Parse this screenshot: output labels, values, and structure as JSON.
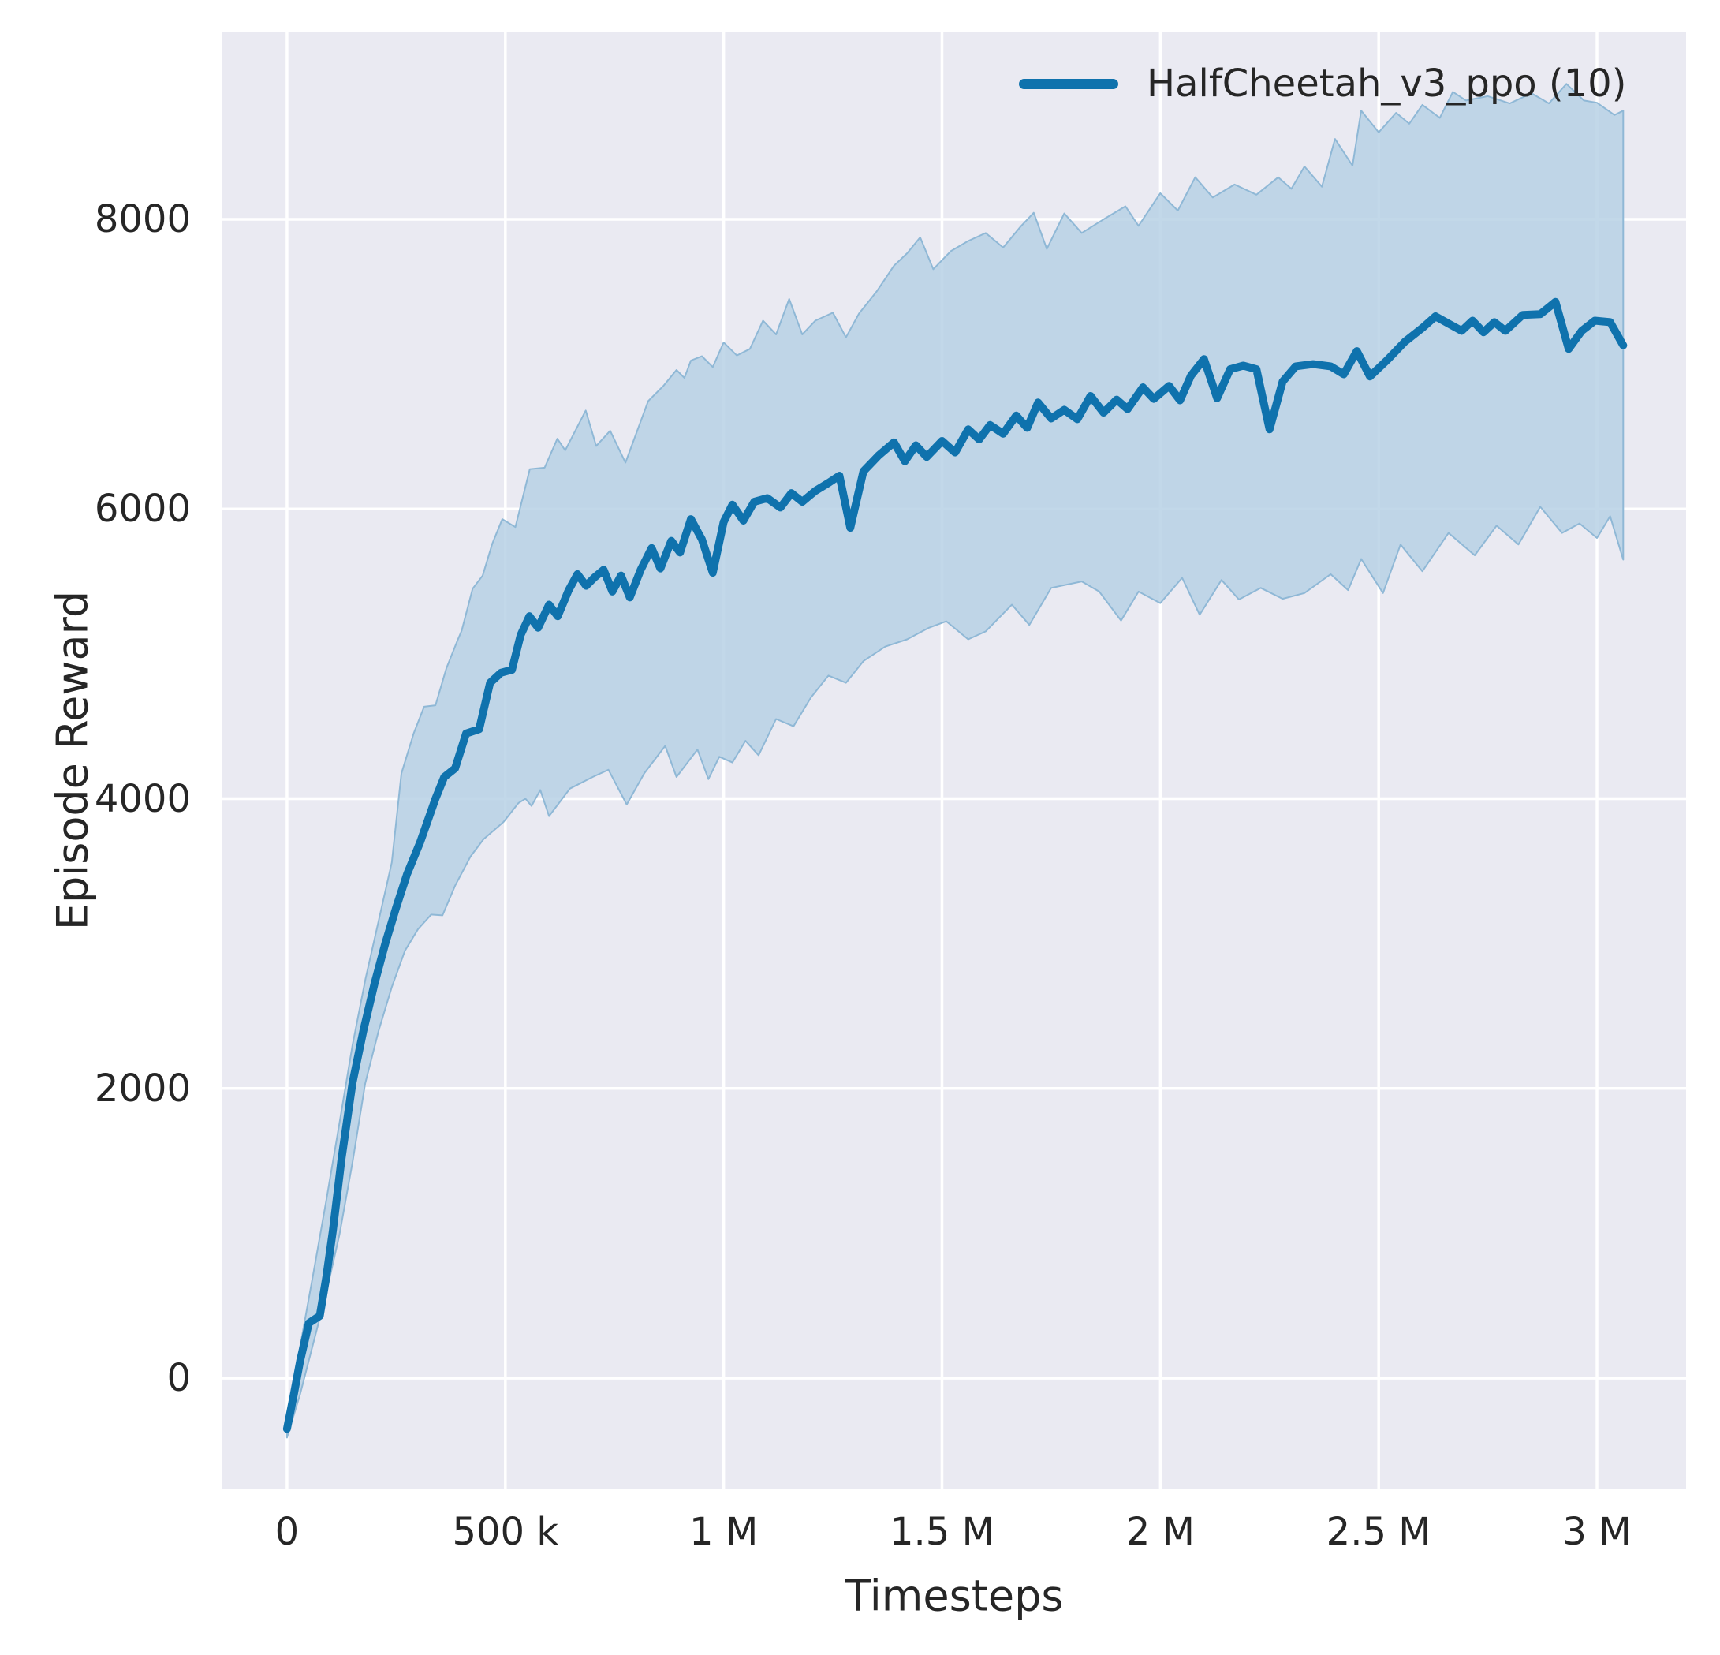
{
  "figure": {
    "panel_bg": "#eaeaf2",
    "grid_color": "#ffffff",
    "text_color": "#262626",
    "line_color": "#0f72ad",
    "band_fill": "#b7d1e5",
    "band_edge": "#8fb8d6"
  },
  "axes": {
    "xlabel": "Timesteps",
    "ylabel": "Episode Reward",
    "x_ticks": [
      {
        "t": 0,
        "label": "0"
      },
      {
        "t": 0.5,
        "label": "500 k"
      },
      {
        "t": 1.0,
        "label": "1 M"
      },
      {
        "t": 1.5,
        "label": "1.5 M"
      },
      {
        "t": 2.0,
        "label": "2 M"
      },
      {
        "t": 2.5,
        "label": "2.5 M"
      },
      {
        "t": 3.0,
        "label": "3 M"
      }
    ],
    "y_ticks": [
      {
        "v": 0,
        "label": "0"
      },
      {
        "v": 2000,
        "label": "2000"
      },
      {
        "v": 4000,
        "label": "4000"
      },
      {
        "v": 6000,
        "label": "6000"
      },
      {
        "v": 8000,
        "label": "8000"
      }
    ]
  },
  "legend": {
    "label": "HalfCheetah_v3_ppo (10)"
  },
  "chart_data": {
    "type": "line",
    "title": "",
    "xlabel": "Timesteps",
    "ylabel": "Episode Reward",
    "x_unit": "millions of timesteps",
    "xlim_M": [
      -0.148,
      3.204
    ],
    "ylim": [
      -762,
      9296
    ],
    "grid": true,
    "legend_position": "upper right",
    "series": [
      {
        "name": "HalfCheetah_v3_ppo (10)",
        "color": "#0f72ad",
        "band_alpha_color": "#b7d1e5",
        "mean": [
          [
            0,
            -350
          ],
          [
            0.015,
            -120
          ],
          [
            0.03,
            120
          ],
          [
            0.05,
            380
          ],
          [
            0.075,
            430
          ],
          [
            0.09,
            700
          ],
          [
            0.105,
            1020
          ],
          [
            0.125,
            1520
          ],
          [
            0.15,
            2040
          ],
          [
            0.175,
            2400
          ],
          [
            0.2,
            2720
          ],
          [
            0.225,
            3000
          ],
          [
            0.25,
            3250
          ],
          [
            0.275,
            3480
          ],
          [
            0.305,
            3700
          ],
          [
            0.34,
            4000
          ],
          [
            0.36,
            4150
          ],
          [
            0.385,
            4210
          ],
          [
            0.41,
            4450
          ],
          [
            0.44,
            4480
          ],
          [
            0.465,
            4800
          ],
          [
            0.49,
            4870
          ],
          [
            0.515,
            4890
          ],
          [
            0.535,
            5130
          ],
          [
            0.555,
            5260
          ],
          [
            0.575,
            5180
          ],
          [
            0.6,
            5340
          ],
          [
            0.62,
            5260
          ],
          [
            0.645,
            5440
          ],
          [
            0.665,
            5550
          ],
          [
            0.685,
            5470
          ],
          [
            0.705,
            5530
          ],
          [
            0.725,
            5580
          ],
          [
            0.745,
            5430
          ],
          [
            0.765,
            5540
          ],
          [
            0.785,
            5390
          ],
          [
            0.81,
            5580
          ],
          [
            0.835,
            5730
          ],
          [
            0.855,
            5590
          ],
          [
            0.88,
            5780
          ],
          [
            0.9,
            5700
          ],
          [
            0.925,
            5930
          ],
          [
            0.95,
            5790
          ],
          [
            0.975,
            5560
          ],
          [
            1.0,
            5910
          ],
          [
            1.02,
            6030
          ],
          [
            1.045,
            5920
          ],
          [
            1.07,
            6050
          ],
          [
            1.1,
            6075
          ],
          [
            1.13,
            6010
          ],
          [
            1.155,
            6110
          ],
          [
            1.18,
            6050
          ],
          [
            1.21,
            6125
          ],
          [
            1.24,
            6180
          ],
          [
            1.265,
            6230
          ],
          [
            1.29,
            5870
          ],
          [
            1.32,
            6260
          ],
          [
            1.355,
            6370
          ],
          [
            1.39,
            6460
          ],
          [
            1.415,
            6330
          ],
          [
            1.44,
            6440
          ],
          [
            1.465,
            6360
          ],
          [
            1.5,
            6470
          ],
          [
            1.53,
            6390
          ],
          [
            1.56,
            6550
          ],
          [
            1.585,
            6480
          ],
          [
            1.61,
            6580
          ],
          [
            1.64,
            6520
          ],
          [
            1.67,
            6645
          ],
          [
            1.695,
            6560
          ],
          [
            1.72,
            6735
          ],
          [
            1.75,
            6625
          ],
          [
            1.78,
            6685
          ],
          [
            1.81,
            6620
          ],
          [
            1.84,
            6780
          ],
          [
            1.87,
            6665
          ],
          [
            1.9,
            6755
          ],
          [
            1.925,
            6690
          ],
          [
            1.96,
            6840
          ],
          [
            1.985,
            6760
          ],
          [
            2.02,
            6850
          ],
          [
            2.045,
            6750
          ],
          [
            2.07,
            6920
          ],
          [
            2.1,
            7035
          ],
          [
            2.13,
            6765
          ],
          [
            2.16,
            6965
          ],
          [
            2.19,
            6990
          ],
          [
            2.22,
            6965
          ],
          [
            2.25,
            6550
          ],
          [
            2.28,
            6880
          ],
          [
            2.31,
            6985
          ],
          [
            2.35,
            7000
          ],
          [
            2.39,
            6985
          ],
          [
            2.42,
            6930
          ],
          [
            2.45,
            7090
          ],
          [
            2.48,
            6915
          ],
          [
            2.52,
            7030
          ],
          [
            2.56,
            7155
          ],
          [
            2.6,
            7250
          ],
          [
            2.63,
            7330
          ],
          [
            2.66,
            7280
          ],
          [
            2.69,
            7230
          ],
          [
            2.715,
            7300
          ],
          [
            2.74,
            7220
          ],
          [
            2.765,
            7290
          ],
          [
            2.79,
            7230
          ],
          [
            2.83,
            7340
          ],
          [
            2.87,
            7345
          ],
          [
            2.905,
            7430
          ],
          [
            2.935,
            7105
          ],
          [
            2.965,
            7230
          ],
          [
            2.995,
            7300
          ],
          [
            3.03,
            7290
          ],
          [
            3.06,
            7130
          ]
        ],
        "band_upper": [
          [
            0,
            -290
          ],
          [
            0.03,
            220
          ],
          [
            0.06,
            720
          ],
          [
            0.09,
            1230
          ],
          [
            0.12,
            1760
          ],
          [
            0.15,
            2300
          ],
          [
            0.18,
            2760
          ],
          [
            0.21,
            3160
          ],
          [
            0.24,
            3560
          ],
          [
            0.262,
            4175
          ],
          [
            0.29,
            4450
          ],
          [
            0.314,
            4635
          ],
          [
            0.34,
            4645
          ],
          [
            0.365,
            4900
          ],
          [
            0.39,
            5090
          ],
          [
            0.4,
            5160
          ],
          [
            0.425,
            5450
          ],
          [
            0.448,
            5540
          ],
          [
            0.47,
            5760
          ],
          [
            0.493,
            5930
          ],
          [
            0.523,
            5875
          ],
          [
            0.556,
            6275
          ],
          [
            0.59,
            6285
          ],
          [
            0.619,
            6485
          ],
          [
            0.637,
            6405
          ],
          [
            0.684,
            6680
          ],
          [
            0.708,
            6435
          ],
          [
            0.74,
            6540
          ],
          [
            0.775,
            6320
          ],
          [
            0.827,
            6745
          ],
          [
            0.862,
            6850
          ],
          [
            0.892,
            6960
          ],
          [
            0.91,
            6905
          ],
          [
            0.925,
            7025
          ],
          [
            0.95,
            7055
          ],
          [
            0.975,
            6980
          ],
          [
            1.0,
            7150
          ],
          [
            1.03,
            7060
          ],
          [
            1.06,
            7105
          ],
          [
            1.09,
            7300
          ],
          [
            1.12,
            7205
          ],
          [
            1.15,
            7450
          ],
          [
            1.18,
            7205
          ],
          [
            1.21,
            7300
          ],
          [
            1.25,
            7355
          ],
          [
            1.28,
            7185
          ],
          [
            1.31,
            7350
          ],
          [
            1.35,
            7500
          ],
          [
            1.39,
            7680
          ],
          [
            1.42,
            7765
          ],
          [
            1.45,
            7875
          ],
          [
            1.48,
            7655
          ],
          [
            1.52,
            7780
          ],
          [
            1.56,
            7850
          ],
          [
            1.6,
            7905
          ],
          [
            1.64,
            7805
          ],
          [
            1.68,
            7950
          ],
          [
            1.71,
            8045
          ],
          [
            1.74,
            7795
          ],
          [
            1.78,
            8040
          ],
          [
            1.82,
            7905
          ],
          [
            1.87,
            8000
          ],
          [
            1.92,
            8090
          ],
          [
            1.95,
            7955
          ],
          [
            2.0,
            8180
          ],
          [
            2.04,
            8060
          ],
          [
            2.08,
            8290
          ],
          [
            2.12,
            8150
          ],
          [
            2.17,
            8240
          ],
          [
            2.22,
            8170
          ],
          [
            2.27,
            8290
          ],
          [
            2.3,
            8210
          ],
          [
            2.33,
            8365
          ],
          [
            2.37,
            8225
          ],
          [
            2.4,
            8555
          ],
          [
            2.44,
            8370
          ],
          [
            2.46,
            8750
          ],
          [
            2.5,
            8600
          ],
          [
            2.54,
            8735
          ],
          [
            2.57,
            8660
          ],
          [
            2.6,
            8790
          ],
          [
            2.64,
            8700
          ],
          [
            2.67,
            8880
          ],
          [
            2.7,
            8820
          ],
          [
            2.75,
            8850
          ],
          [
            2.8,
            8800
          ],
          [
            2.85,
            8870
          ],
          [
            2.89,
            8800
          ],
          [
            2.93,
            8935
          ],
          [
            2.97,
            8820
          ],
          [
            3.0,
            8805
          ],
          [
            3.04,
            8720
          ],
          [
            3.06,
            8750
          ]
        ],
        "band_lower": [
          [
            0,
            -410
          ],
          [
            0.03,
            -110
          ],
          [
            0.06,
            240
          ],
          [
            0.09,
            590
          ],
          [
            0.12,
            990
          ],
          [
            0.15,
            1490
          ],
          [
            0.179,
            2035
          ],
          [
            0.21,
            2400
          ],
          [
            0.24,
            2700
          ],
          [
            0.27,
            2950
          ],
          [
            0.3,
            3100
          ],
          [
            0.33,
            3200
          ],
          [
            0.356,
            3195
          ],
          [
            0.385,
            3400
          ],
          [
            0.42,
            3600
          ],
          [
            0.45,
            3720
          ],
          [
            0.496,
            3840
          ],
          [
            0.53,
            3970
          ],
          [
            0.546,
            4000
          ],
          [
            0.56,
            3950
          ],
          [
            0.58,
            4060
          ],
          [
            0.6,
            3880
          ],
          [
            0.648,
            4070
          ],
          [
            0.7,
            4150
          ],
          [
            0.736,
            4200
          ],
          [
            0.778,
            3960
          ],
          [
            0.818,
            4175
          ],
          [
            0.866,
            4365
          ],
          [
            0.892,
            4150
          ],
          [
            0.94,
            4340
          ],
          [
            0.965,
            4135
          ],
          [
            0.99,
            4290
          ],
          [
            1.02,
            4250
          ],
          [
            1.05,
            4400
          ],
          [
            1.08,
            4300
          ],
          [
            1.12,
            4550
          ],
          [
            1.16,
            4500
          ],
          [
            1.2,
            4700
          ],
          [
            1.24,
            4850
          ],
          [
            1.28,
            4800
          ],
          [
            1.32,
            4950
          ],
          [
            1.37,
            5050
          ],
          [
            1.42,
            5100
          ],
          [
            1.47,
            5180
          ],
          [
            1.51,
            5225
          ],
          [
            1.56,
            5100
          ],
          [
            1.6,
            5155
          ],
          [
            1.66,
            5340
          ],
          [
            1.7,
            5200
          ],
          [
            1.75,
            5455
          ],
          [
            1.82,
            5500
          ],
          [
            1.86,
            5430
          ],
          [
            1.91,
            5230
          ],
          [
            1.95,
            5430
          ],
          [
            2.0,
            5350
          ],
          [
            2.05,
            5525
          ],
          [
            2.09,
            5270
          ],
          [
            2.14,
            5510
          ],
          [
            2.18,
            5375
          ],
          [
            2.23,
            5455
          ],
          [
            2.28,
            5380
          ],
          [
            2.33,
            5420
          ],
          [
            2.39,
            5550
          ],
          [
            2.43,
            5440
          ],
          [
            2.46,
            5655
          ],
          [
            2.51,
            5420
          ],
          [
            2.55,
            5755
          ],
          [
            2.6,
            5570
          ],
          [
            2.66,
            5835
          ],
          [
            2.72,
            5680
          ],
          [
            2.77,
            5885
          ],
          [
            2.82,
            5755
          ],
          [
            2.87,
            6015
          ],
          [
            2.92,
            5835
          ],
          [
            2.96,
            5900
          ],
          [
            3.0,
            5800
          ],
          [
            3.03,
            5950
          ],
          [
            3.06,
            5650
          ]
        ]
      }
    ]
  }
}
